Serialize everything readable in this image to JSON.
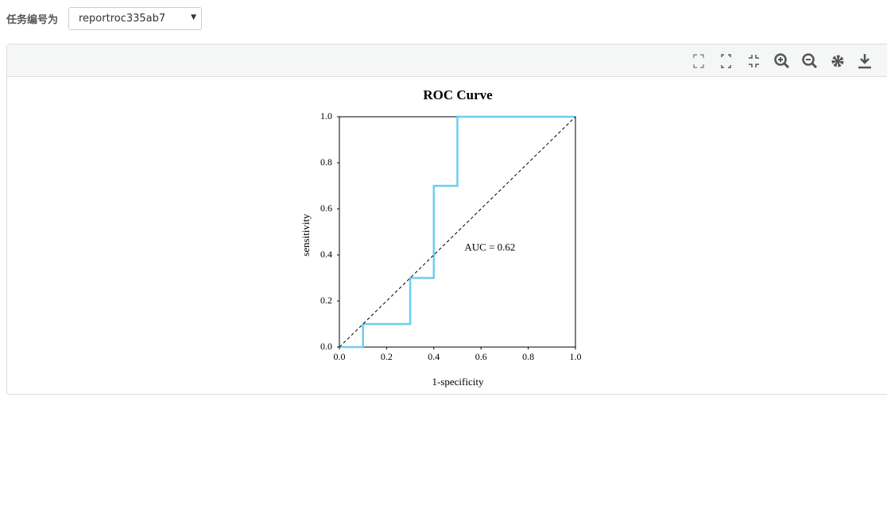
{
  "form": {
    "label": "任务编号为",
    "selected": "reportroc335ab7"
  },
  "chart_data": {
    "type": "line",
    "title": "ROC Curve",
    "x_label": "1-specificity",
    "y_label": "sensitivity",
    "series": [
      {
        "color": "#6ccfee",
        "x": [
          0,
          0.1,
          0.1,
          0.3,
          0.3,
          0.4,
          0.4,
          0.5,
          0.5,
          1
        ],
        "values": [
          0,
          0,
          0.1,
          0.1,
          0.3,
          0.3,
          0.7,
          0.7,
          1,
          1
        ]
      },
      {
        "color": "#000000",
        "dashed": true,
        "x": [
          0,
          1
        ],
        "values": [
          0,
          1
        ]
      }
    ],
    "annotation": {
      "text": "AUC = 0.62",
      "x": 0.53,
      "y": 0.43
    },
    "xlim": [
      0,
      1
    ],
    "ylim": [
      0,
      1
    ],
    "xticks": [
      {
        "value": 0,
        "label": "0.0"
      },
      0.2,
      0.4,
      0.6,
      0.8,
      {
        "value": 1,
        "label": "1.0"
      }
    ],
    "yticks": [
      {
        "value": 0,
        "label": "0.0"
      },
      0.2,
      0.4,
      0.6,
      0.8,
      {
        "value": 1,
        "label": "1.0"
      }
    ],
    "grid": false
  }
}
